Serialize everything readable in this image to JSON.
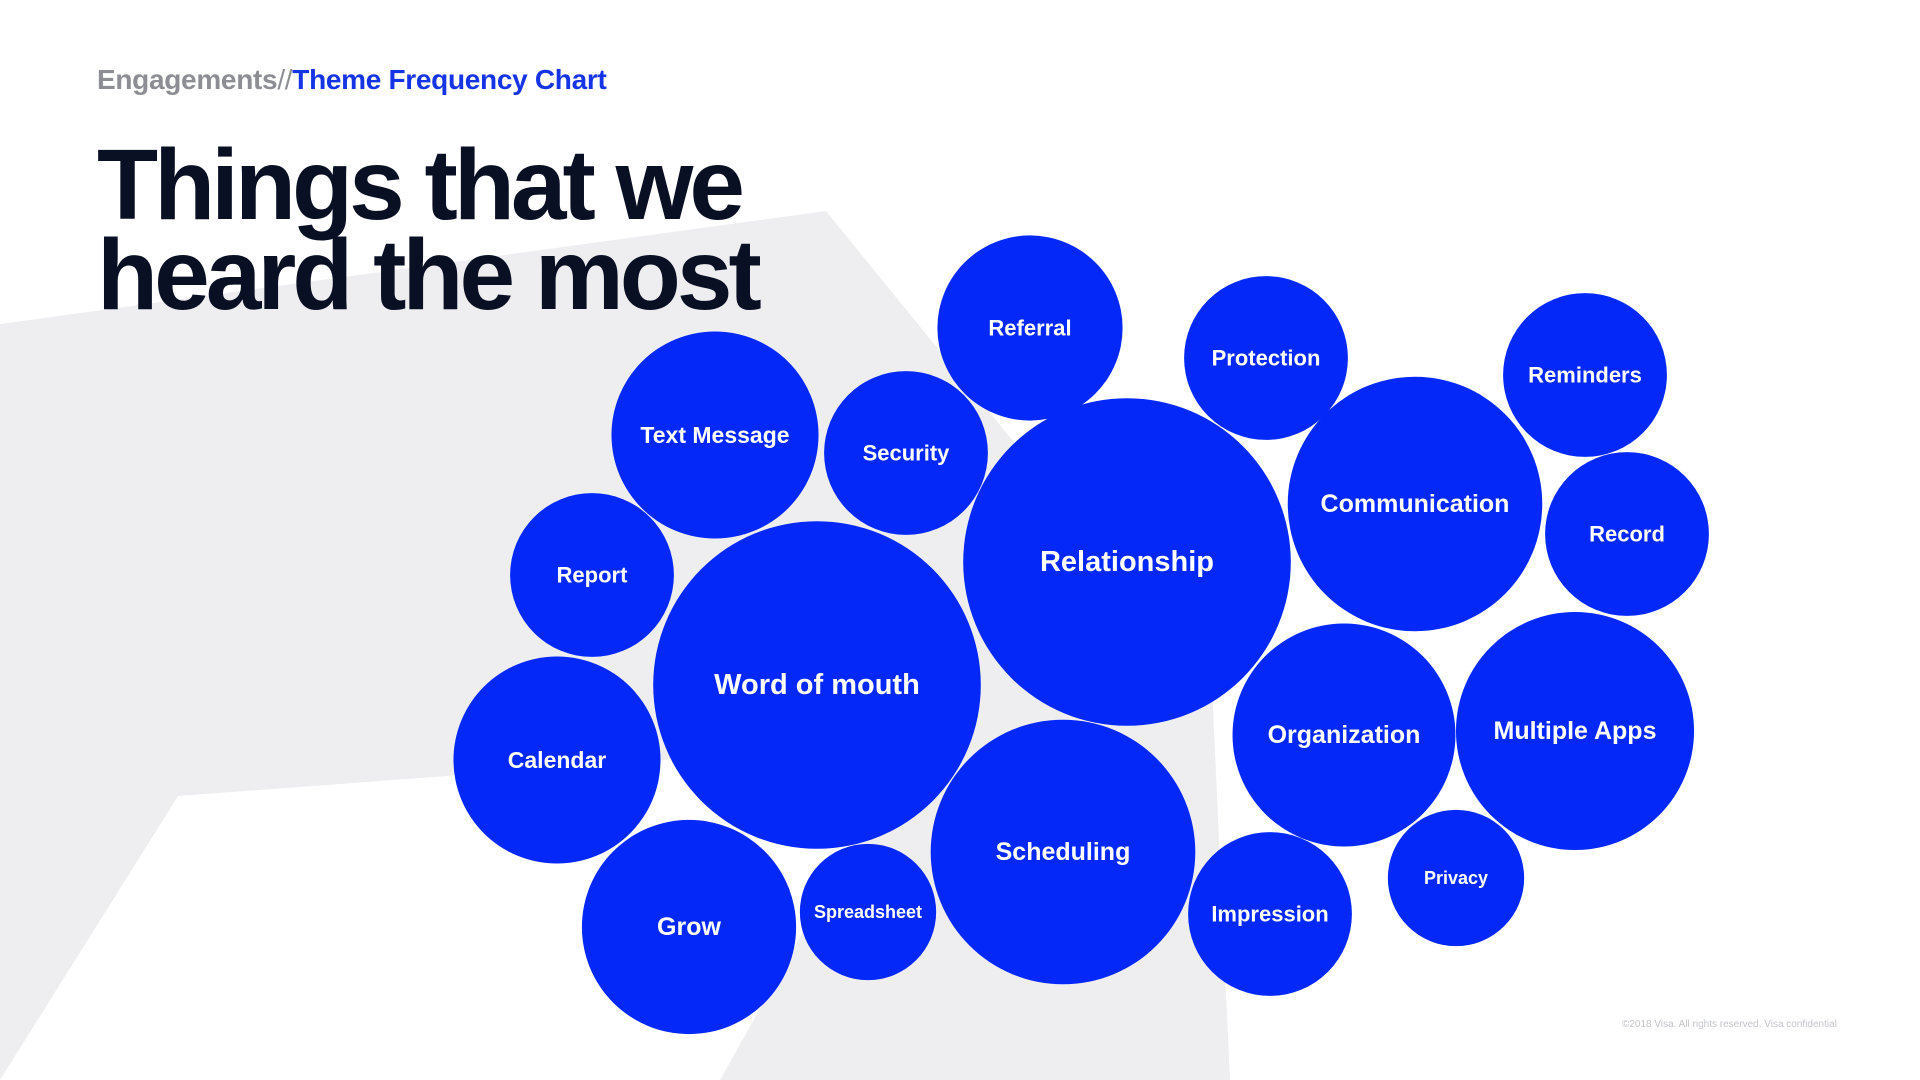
{
  "breadcrumb": {
    "parent": "Engagements",
    "separator": "//",
    "current": "Theme Frequency Chart"
  },
  "title": {
    "line1": "Things that we",
    "line2": "heard the most"
  },
  "footnote": "©2018 Visa. All rights reserved. Visa confidential",
  "colors": {
    "bubble": "#0328f7",
    "background_shape": "#eeeef1",
    "title": "#0a1024",
    "accent": "#1434e6",
    "muted": "#8c8e94"
  },
  "chart_data": {
    "type": "bubble",
    "value_scale": "relative bubble area (radius-estimated)",
    "series": [
      {
        "name": "Referral",
        "value": 2.16
      },
      {
        "name": "Protection",
        "value": 1.69
      },
      {
        "name": "Reminders",
        "value": 1.69
      },
      {
        "name": "Text Message",
        "value": 2.7
      },
      {
        "name": "Security",
        "value": 1.69
      },
      {
        "name": "Relationship",
        "value": 6.76
      },
      {
        "name": "Communication",
        "value": 4.08
      },
      {
        "name": "Record",
        "value": 1.69
      },
      {
        "name": "Report",
        "value": 1.69
      },
      {
        "name": "Word of mouth",
        "value": 6.76
      },
      {
        "name": "Organization",
        "value": 3.13
      },
      {
        "name": "Multiple Apps",
        "value": 3.57
      },
      {
        "name": "Calendar",
        "value": 2.7
      },
      {
        "name": "Scheduling",
        "value": 4.41
      },
      {
        "name": "Privacy",
        "value": 1.17
      },
      {
        "name": "Impression",
        "value": 1.69
      },
      {
        "name": "Grow",
        "value": 2.89
      },
      {
        "name": "Spreadsheet",
        "value": 1.17
      }
    ]
  }
}
